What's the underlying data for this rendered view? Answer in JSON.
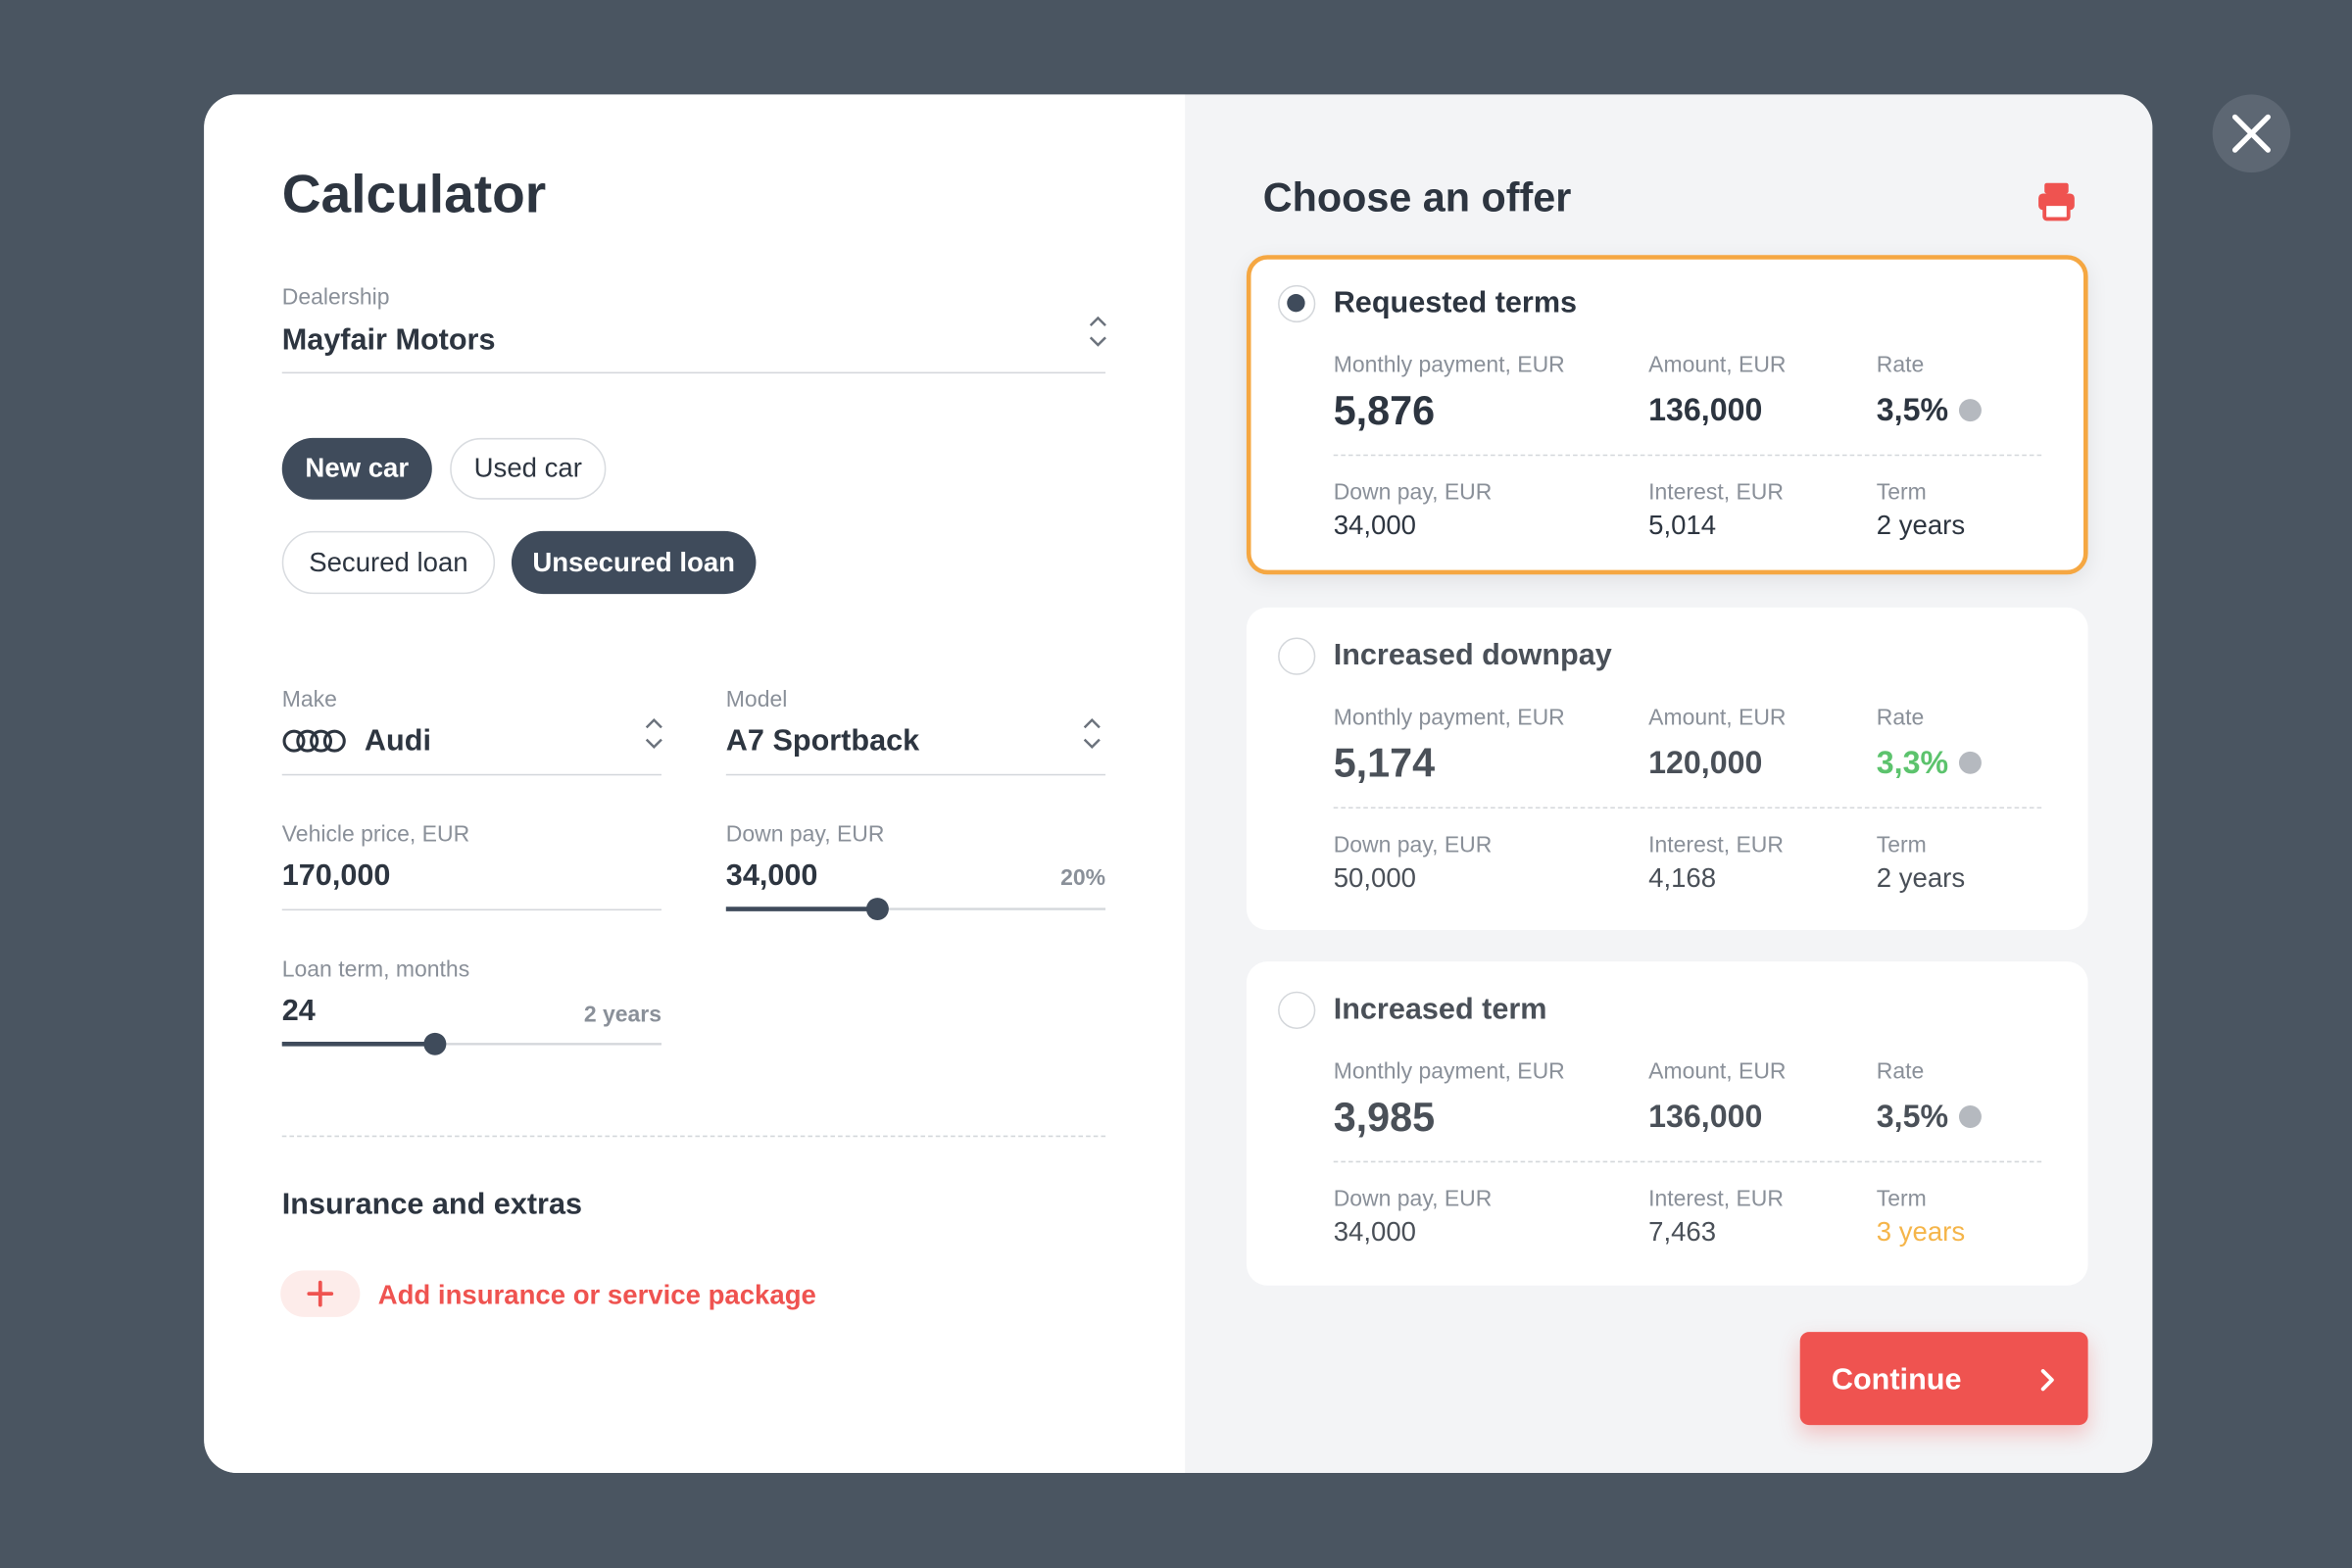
{
  "calculator": {
    "title": "Calculator",
    "dealership": {
      "label": "Dealership",
      "value": "Mayfair Motors"
    },
    "car_type": [
      "New car",
      "Used car"
    ],
    "loan_type": [
      "Secured loan",
      "Unsecured loan"
    ],
    "make": {
      "label": "Make",
      "value": "Audi"
    },
    "model": {
      "label": "Model",
      "value": "A7 Sportback"
    },
    "vehicle_price": {
      "label": "Vehicle price, EUR",
      "value": "170,000"
    },
    "down_pay": {
      "label": "Down pay, EUR",
      "value": "34,000",
      "percent": "20%"
    },
    "loan_term": {
      "label": "Loan term, months",
      "value": "24",
      "note": "2 years"
    },
    "insurance": {
      "title": "Insurance and extras",
      "action": "Add insurance or service package"
    }
  },
  "offers": {
    "title": "Choose an offer",
    "cards": [
      {
        "title": "Requested terms",
        "selected": true,
        "fields": [
          {
            "label": "Monthly payment, EUR",
            "value": "5,876"
          },
          {
            "label": "Amount, EUR",
            "value": "136,000"
          },
          {
            "label": "Rate",
            "value": "3,5%"
          },
          {
            "label": "Down pay, EUR",
            "value": "34,000"
          },
          {
            "label": "Interest, EUR",
            "value": "5,014"
          },
          {
            "label": "Term",
            "value": "2 years"
          }
        ]
      },
      {
        "title": "Increased downpay",
        "selected": false,
        "fields": [
          {
            "label": "Monthly payment, EUR",
            "value": "5,174"
          },
          {
            "label": "Amount, EUR",
            "value": "120,000"
          },
          {
            "label": "Rate",
            "value": "3,3%",
            "color": "#5cc36d"
          },
          {
            "label": "Down pay, EUR",
            "value": "50,000"
          },
          {
            "label": "Interest, EUR",
            "value": "4,168"
          },
          {
            "label": "Term",
            "value": "2 years"
          }
        ]
      },
      {
        "title": "Increased term",
        "selected": false,
        "fields": [
          {
            "label": "Monthly payment, EUR",
            "value": "3,985"
          },
          {
            "label": "Amount, EUR",
            "value": "136,000"
          },
          {
            "label": "Rate",
            "value": "3,5%"
          },
          {
            "label": "Down pay, EUR",
            "value": "34,000"
          },
          {
            "label": "Interest, EUR",
            "value": "7,463"
          },
          {
            "label": "Term",
            "value": "3 years",
            "color": "#f5b54a"
          }
        ]
      }
    ],
    "continue": "Continue"
  }
}
